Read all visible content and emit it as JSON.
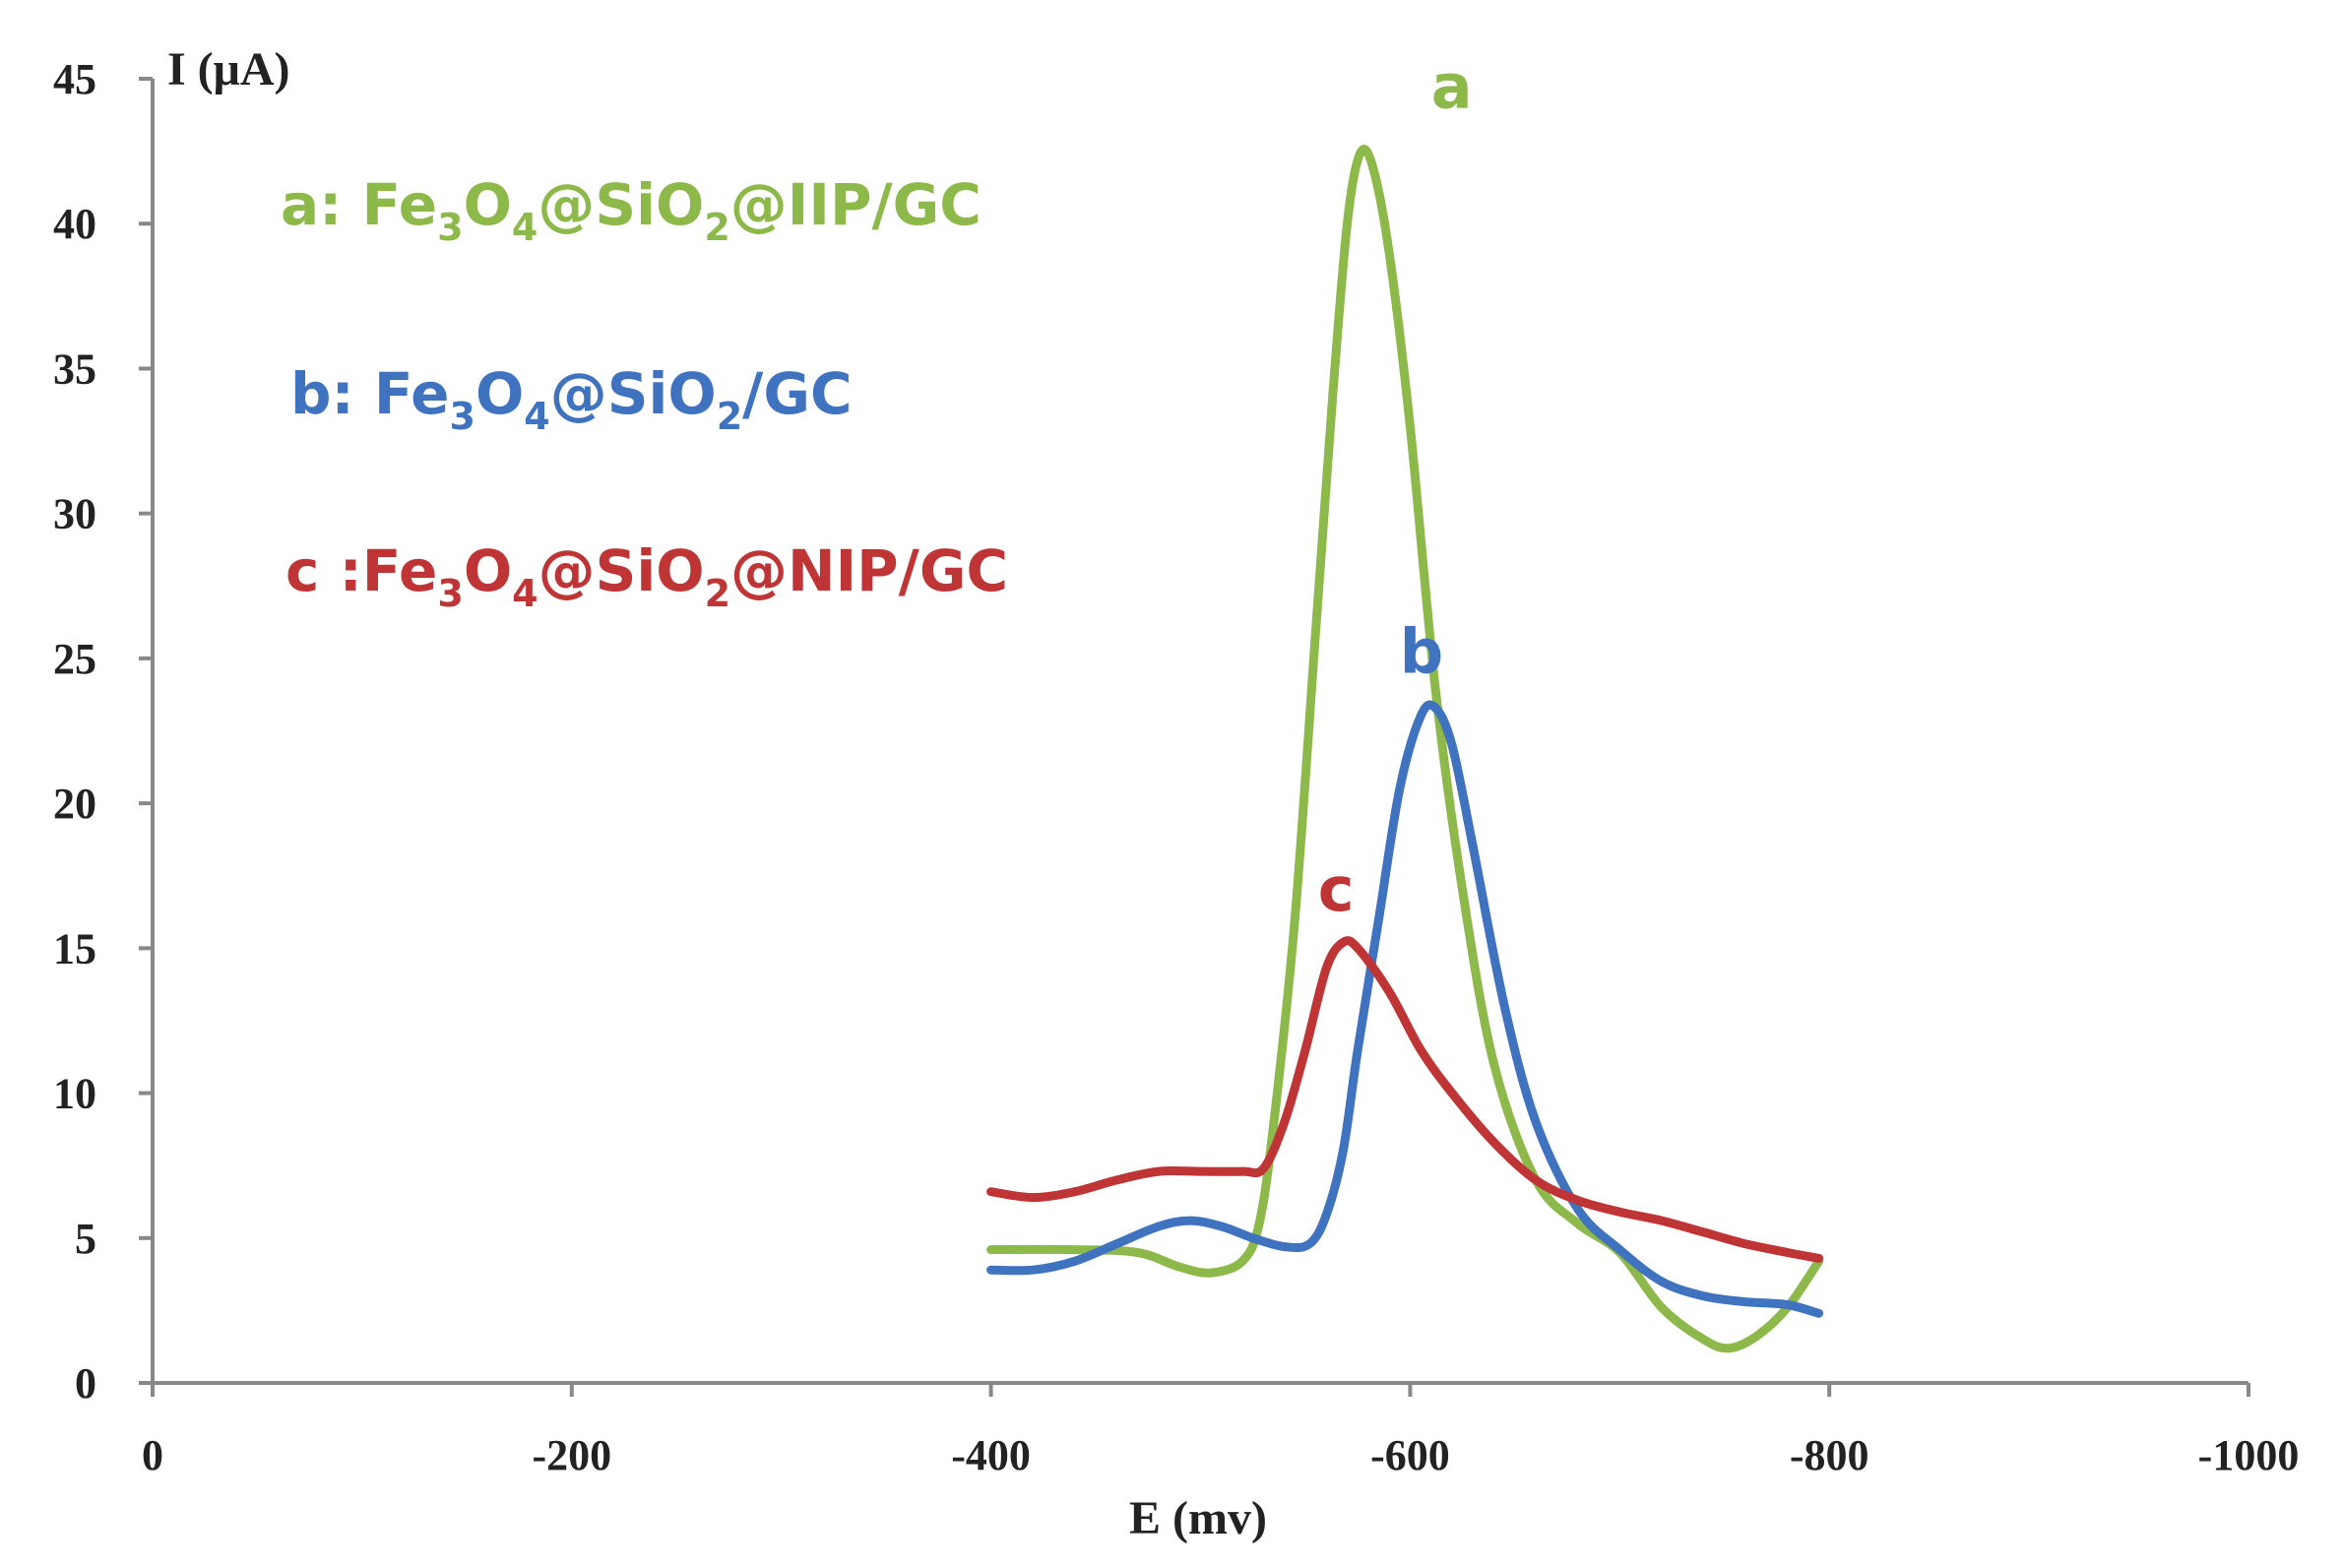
{
  "chart_data": {
    "type": "line",
    "xlabel": "E (mv)",
    "ylabel": "I (μA)",
    "xlim": [
      0,
      -1000
    ],
    "ylim": [
      0,
      45
    ],
    "x_ticks": [
      "0",
      "-200",
      "-400",
      "-600",
      "-800",
      "-1000"
    ],
    "y_ticks": [
      "0",
      "5",
      "10",
      "15",
      "20",
      "25",
      "30",
      "35",
      "40",
      "45"
    ],
    "grid": false,
    "legend": {
      "placement": "top-left",
      "entries": [
        {
          "prefix": "a: ",
          "parts": [
            [
              "Fe",
              ""
            ],
            [
              "3",
              "sub"
            ],
            [
              "O",
              ""
            ],
            [
              "4",
              "sub"
            ],
            [
              "@SiO",
              ""
            ],
            [
              "2",
              "sub"
            ],
            [
              "@IIP/GC",
              ""
            ]
          ]
        },
        {
          "prefix": "b: ",
          "parts": [
            [
              "Fe",
              ""
            ],
            [
              "3",
              "sub"
            ],
            [
              "O",
              ""
            ],
            [
              "4",
              "sub"
            ],
            [
              "@SiO",
              ""
            ],
            [
              "2",
              "sub"
            ],
            [
              "/GC",
              ""
            ]
          ]
        },
        {
          "prefix": "c :",
          "parts": [
            [
              "Fe",
              ""
            ],
            [
              "3",
              "sub"
            ],
            [
              "O",
              ""
            ],
            [
              "4",
              "sub"
            ],
            [
              "@SiO",
              ""
            ],
            [
              "2",
              "sub"
            ],
            [
              "@NIP/GC",
              ""
            ]
          ]
        }
      ]
    },
    "series": [
      {
        "name": "a",
        "color": "#8db84a",
        "label_at": [
          -610,
          44
        ],
        "points": [
          [
            -400,
            4.6
          ],
          [
            -440,
            4.6
          ],
          [
            -470,
            4.5
          ],
          [
            -490,
            4.0
          ],
          [
            -505,
            3.8
          ],
          [
            -520,
            4.2
          ],
          [
            -528,
            5.5
          ],
          [
            -535,
            9.0
          ],
          [
            -545,
            16.0
          ],
          [
            -555,
            26.0
          ],
          [
            -563,
            34.0
          ],
          [
            -570,
            40.0
          ],
          [
            -576,
            42.4
          ],
          [
            -582,
            42.0
          ],
          [
            -590,
            39.0
          ],
          [
            -600,
            33.0
          ],
          [
            -612,
            24.0
          ],
          [
            -625,
            17.0
          ],
          [
            -640,
            11.0
          ],
          [
            -660,
            7.0
          ],
          [
            -680,
            5.5
          ],
          [
            -700,
            4.5
          ],
          [
            -720,
            2.6
          ],
          [
            -740,
            1.5
          ],
          [
            -752,
            1.2
          ],
          [
            -765,
            1.6
          ],
          [
            -780,
            2.6
          ],
          [
            -795,
            4.2
          ]
        ]
      },
      {
        "name": "b",
        "color": "#3f73bf",
        "label_at": [
          -595,
          24.5
        ],
        "points": [
          [
            -400,
            3.9
          ],
          [
            -420,
            3.9
          ],
          [
            -440,
            4.2
          ],
          [
            -460,
            4.8
          ],
          [
            -480,
            5.4
          ],
          [
            -495,
            5.6
          ],
          [
            -510,
            5.4
          ],
          [
            -525,
            5.0
          ],
          [
            -540,
            4.7
          ],
          [
            -552,
            4.8
          ],
          [
            -560,
            5.8
          ],
          [
            -568,
            8.0
          ],
          [
            -575,
            11.5
          ],
          [
            -585,
            16.0
          ],
          [
            -595,
            20.5
          ],
          [
            -605,
            23.0
          ],
          [
            -612,
            23.3
          ],
          [
            -620,
            22.0
          ],
          [
            -630,
            18.5
          ],
          [
            -645,
            13.0
          ],
          [
            -660,
            9.0
          ],
          [
            -680,
            6.0
          ],
          [
            -700,
            4.6
          ],
          [
            -720,
            3.5
          ],
          [
            -740,
            3.0
          ],
          [
            -760,
            2.8
          ],
          [
            -780,
            2.7
          ],
          [
            -795,
            2.4
          ]
        ]
      },
      {
        "name": "c",
        "color": "#bf3535",
        "label_at": [
          -556,
          16.3
        ],
        "points": [
          [
            -400,
            6.6
          ],
          [
            -420,
            6.4
          ],
          [
            -440,
            6.6
          ],
          [
            -460,
            7.0
          ],
          [
            -480,
            7.3
          ],
          [
            -500,
            7.3
          ],
          [
            -520,
            7.3
          ],
          [
            -530,
            7.4
          ],
          [
            -540,
            9.0
          ],
          [
            -550,
            11.5
          ],
          [
            -560,
            14.3
          ],
          [
            -568,
            15.2
          ],
          [
            -575,
            15.0
          ],
          [
            -590,
            13.5
          ],
          [
            -605,
            11.5
          ],
          [
            -620,
            10.0
          ],
          [
            -640,
            8.3
          ],
          [
            -660,
            7.0
          ],
          [
            -680,
            6.3
          ],
          [
            -700,
            5.9
          ],
          [
            -720,
            5.6
          ],
          [
            -740,
            5.2
          ],
          [
            -760,
            4.8
          ],
          [
            -780,
            4.5
          ],
          [
            -795,
            4.3
          ]
        ]
      }
    ]
  }
}
